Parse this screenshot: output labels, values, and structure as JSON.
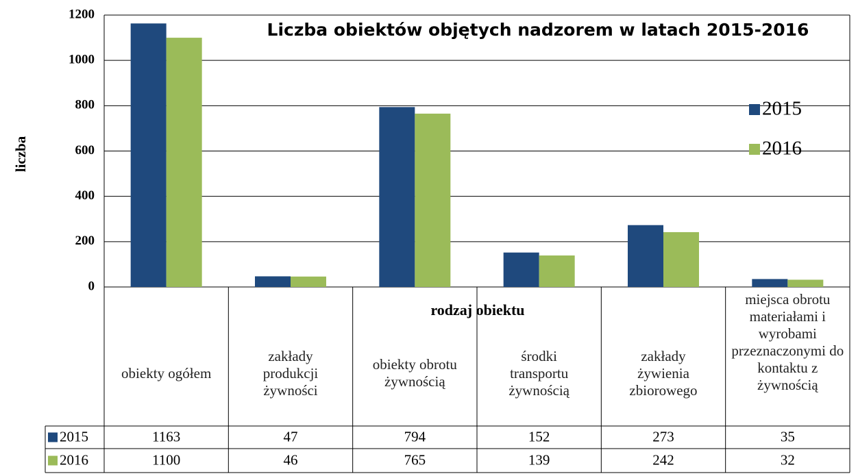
{
  "chart_data": {
    "type": "bar",
    "title": "Liczba obiektów objętych nadzorem w latach 2015-2016",
    "x_label": "rodzaj  obiektu",
    "y_label": "liczba",
    "categories": [
      "obiekty ogółem",
      "zakłady produkcji żywności",
      "obiekty obrotu żywnością",
      "środki transportu żywnością",
      "zakłady żywienia zbiorowego",
      "miejsca obrotu materiałami i wyrobami przeznaczonymi do kontaktu z żywnością"
    ],
    "series": [
      {
        "name": "2015",
        "color": "#1f497d",
        "values": [
          1163,
          47,
          794,
          152,
          273,
          35
        ]
      },
      {
        "name": "2016",
        "color": "#9bbb59",
        "values": [
          1100,
          46,
          765,
          139,
          242,
          32
        ]
      }
    ],
    "ylim": [
      0,
      1200
    ],
    "yticks": [
      0,
      200,
      400,
      600,
      800,
      1000,
      1200
    ],
    "grid": true,
    "legend": "right"
  }
}
